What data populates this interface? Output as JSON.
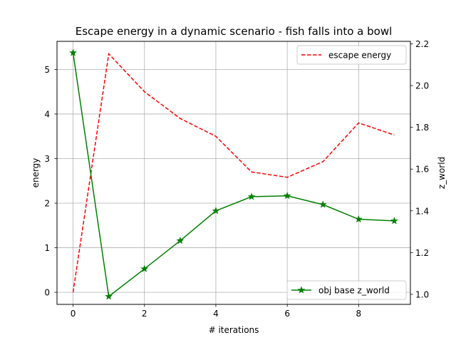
{
  "chart_data": {
    "type": "line",
    "title": "Escape energy in a dynamic scenario - fish falls into a bowl",
    "xlabel": "# iterations",
    "ylabel_left": "energy",
    "ylabel_right": "z_world",
    "xlim": [
      -0.45,
      9.45
    ],
    "ylim_left": [
      -0.27,
      5.63
    ],
    "ylim_right": [
      0.952,
      2.212
    ],
    "xticks": [
      0,
      2,
      4,
      6,
      8
    ],
    "yticks_left": [
      0,
      1,
      2,
      3,
      4,
      5
    ],
    "yticks_right": [
      1.0,
      1.2,
      1.4,
      1.6,
      1.8,
      2.0,
      2.2
    ],
    "grid": true,
    "series": [
      {
        "name": "escape energy",
        "axis": "left",
        "color": "#ff0000",
        "linestyle": "dashed",
        "marker": "none",
        "x": [
          0,
          1,
          2,
          3,
          4,
          5,
          6,
          7,
          8,
          9
        ],
        "values": [
          0.0,
          5.35,
          4.5,
          3.9,
          3.5,
          2.7,
          2.58,
          2.93,
          3.8,
          3.53
        ]
      },
      {
        "name": "obj base z_world",
        "axis": "right",
        "color": "#008000",
        "linestyle": "solid",
        "marker": "star",
        "x": [
          0,
          1,
          2,
          3,
          4,
          5,
          6,
          7,
          8,
          9
        ],
        "values": [
          2.157,
          0.99,
          1.122,
          1.257,
          1.4,
          1.468,
          1.472,
          1.43,
          1.36,
          1.352
        ]
      }
    ],
    "legends": [
      {
        "location": "upper right",
        "entries": [
          "escape energy"
        ]
      },
      {
        "location": "lower right",
        "entries": [
          "obj base z_world"
        ]
      }
    ]
  }
}
